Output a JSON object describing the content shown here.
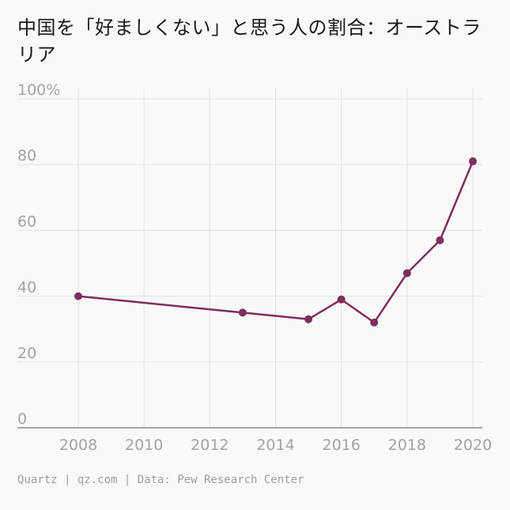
{
  "header": {
    "title": "中国を「好ましくない」と思う人の割合：オーストラリア"
  },
  "footer": {
    "source": "Quartz | qz.com | Data: Pew Research Center"
  },
  "colors": {
    "series": "#7d2e5e",
    "grid": "#e3e3e3",
    "axis": "#8a8a8a",
    "tick_text": "#a3a3a3"
  },
  "chart_data": {
    "type": "line",
    "title": "中国を「好ましくない」と思う人の割合：オーストラリア",
    "xlabel": "",
    "ylabel": "",
    "x": [
      2008,
      2013,
      2015,
      2016,
      2017,
      2018,
      2019,
      2020
    ],
    "series": [
      {
        "values": [
          40,
          35,
          33,
          39,
          32,
          47,
          57,
          81
        ]
      }
    ],
    "xlim": [
      2008,
      2020
    ],
    "ylim": [
      0,
      100
    ],
    "x_ticks": [
      2008,
      2010,
      2012,
      2014,
      2016,
      2018,
      2020
    ],
    "x_tick_labels": [
      "2008",
      "2010",
      "2012",
      "2014",
      "2016",
      "2018",
      "2020"
    ],
    "y_ticks": [
      0,
      20,
      40,
      60,
      80,
      100
    ],
    "y_tick_labels": [
      "0",
      "20",
      "40",
      "60",
      "80",
      "100%"
    ],
    "grid": true,
    "markers": true
  }
}
